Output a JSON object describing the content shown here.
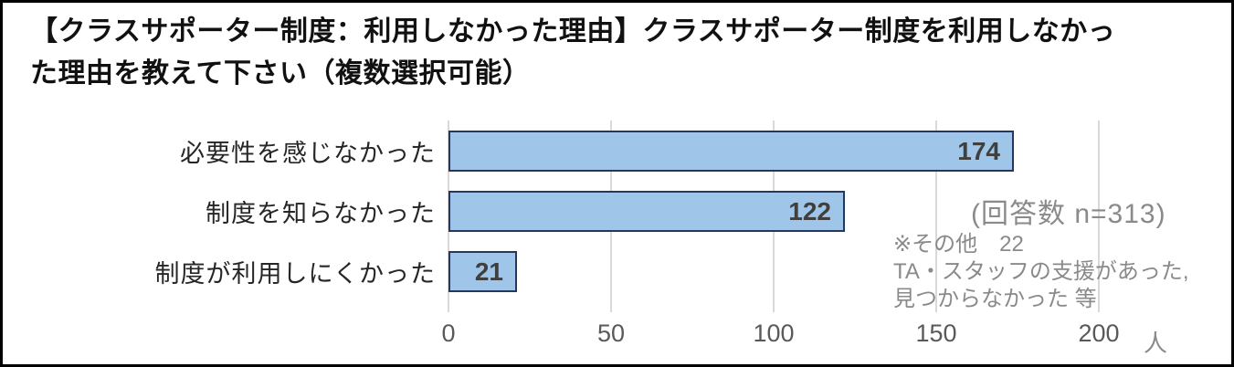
{
  "title": {
    "lines": [
      "【クラスサポーター制度：利用しなかった理由】クラスサポーター制度を利用しなかっ",
      "た理由を教えて下さい（複数選択可能）"
    ]
  },
  "chart_data": {
    "type": "bar",
    "orientation": "horizontal",
    "title": "【クラスサポーター制度：利用しなかった理由】クラスサポーター制度を利用しなかった理由を教えて下さい（複数選択可能）",
    "categories": [
      "必要性を感じなかった",
      "制度を知らなかった",
      "制度が利用しにくかった"
    ],
    "values": [
      174,
      122,
      21
    ],
    "xlim": [
      0,
      200
    ],
    "xticks": [
      0,
      50,
      100,
      150,
      200
    ],
    "x_unit": "人",
    "grid": true,
    "legend": false,
    "colors": {
      "bar_fill": "#9FC5E8",
      "bar_border": "#1F3864",
      "gridline": "#D9D9D9",
      "tick_text": "#595959",
      "category_text": "#262626",
      "value_text": "#3F3F3F",
      "annotation_text": "#8A8A8A"
    }
  },
  "annotations": {
    "respondents": "(回答数 n=313)",
    "other_note_lines": [
      "※その他　22",
      "TA・スタッフの支援があった,",
      "見つからなかった 等"
    ]
  }
}
